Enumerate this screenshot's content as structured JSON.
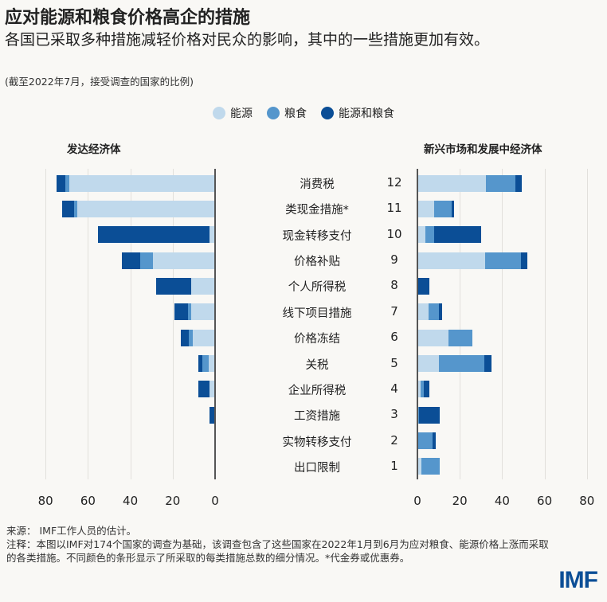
{
  "header": {
    "title": "应对能源和粮食价格高企的措施",
    "subtitle": "各国已采取多种措施减轻价格对民众的影响，其中的一些措施更加有效。",
    "note": "(截至2022年7月，接受调查的国家的比例)"
  },
  "colors": {
    "energy": "#c0d9ec",
    "food": "#5596cc",
    "both": "#0b4e96",
    "background": "#f9f8f5"
  },
  "chart_data": {
    "type": "bar",
    "orientation": "horizontal-stacked",
    "legend": {
      "position": "top-center",
      "entries": [
        "能源",
        "粮食",
        "能源和粮食"
      ]
    },
    "categories": [
      "消费税",
      "类现金措施*",
      "现金转移支付",
      "价格补贴",
      "个人所得税",
      "线下项目措施",
      "价格冻结",
      "关税",
      "企业所得税",
      "工资措施",
      "实物转移支付",
      "出口限制"
    ],
    "category_numbers": [
      "12",
      "11",
      "10",
      "9",
      "8",
      "7",
      "6",
      "5",
      "4",
      "3",
      "2",
      "1"
    ],
    "panels": [
      {
        "title": "发达经济体",
        "xlim": [
          80,
          0
        ],
        "ticks": [
          "80",
          "60",
          "40",
          "20",
          "0"
        ],
        "grid": true,
        "series": [
          {
            "name": "能源",
            "values": [
              68.9,
              65.1,
              2.5,
              29.3,
              11.1,
              11.1,
              10.7,
              3.1,
              2.5,
              0,
              0,
              0
            ]
          },
          {
            "name": "粮食",
            "values": [
              1.6,
              1.6,
              0,
              6.2,
              0,
              1.5,
              1.6,
              3.1,
              0,
              0,
              0,
              0
            ]
          },
          {
            "name": "能源和粮食",
            "values": [
              4.3,
              5.4,
              52.9,
              8.6,
              16.6,
              6.7,
              4.0,
              1.8,
              5.5,
              2.5,
              0,
              0
            ]
          }
        ]
      },
      {
        "title": "新兴市场和发展中经济体",
        "xlim": [
          0,
          80
        ],
        "ticks": [
          "0",
          "20",
          "40",
          "60",
          "80"
        ],
        "grid": true,
        "series": [
          {
            "name": "能源",
            "values": [
              32.3,
              8.0,
              3.9,
              32.0,
              0,
              5.4,
              14.7,
              10.0,
              1.5,
              0,
              0,
              1.7
            ]
          },
          {
            "name": "粮食",
            "values": [
              13.9,
              8.0,
              3.9,
              16.7,
              0,
              4.9,
              11.2,
              21.4,
              1.4,
              0.6,
              7.2,
              9.0
            ]
          },
          {
            "name": "能源和粮食",
            "values": [
              2.9,
              1.4,
              22.2,
              3.2,
              5.7,
              1.2,
              0,
              3.4,
              2.9,
              10.0,
              1.5,
              0
            ]
          }
        ]
      }
    ]
  },
  "footer": {
    "source": "来源：  IMF工作人员的估计。",
    "notes": "注释：本图以IMF对174个国家的调查为基础，该调查包含了这些国家在2022年1月到6月为应对粮食、能源价格上涨而采取的各类措施。不同颜色的条形显示了所采取的每类措施总数的细分情况。*代金券或优惠券。",
    "logo": "IMF"
  }
}
